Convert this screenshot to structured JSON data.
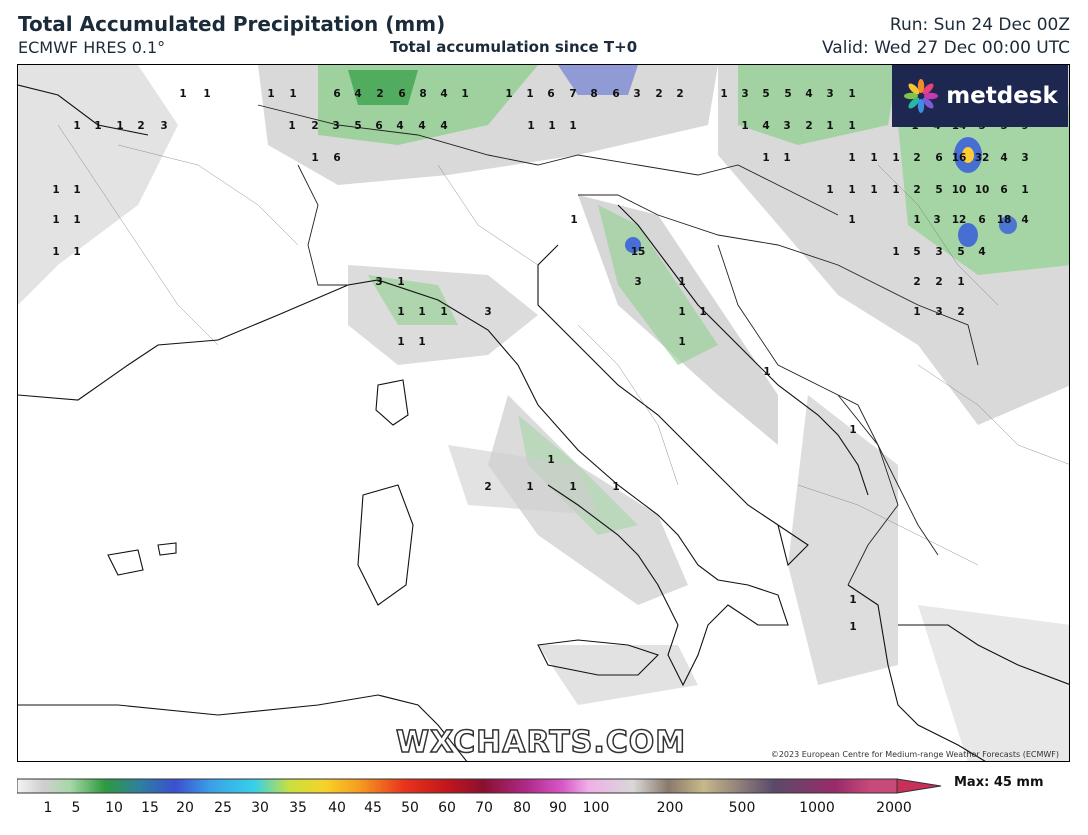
{
  "header": {
    "title": "Total Accumulated Precipitation (mm)",
    "subtitle": "ECMWF HRES 0.1°",
    "center_subtitle": "Total accumulation since T+0",
    "run": "Run: Sun 24 Dec 00Z",
    "valid": "Valid: Wed 27 Dec 00:00 UTC"
  },
  "logo": {
    "text": "metdesk",
    "icon": "pinwheel-logo-icon"
  },
  "watermark": "WXCHARTS.COM",
  "copyright": "©2023 European Centre for Medium-range Weather Forecasts (ECMWF)",
  "colorbar": {
    "max_label": "Max: 45 mm",
    "ticks": [
      "1",
      "5",
      "10",
      "15",
      "20",
      "25",
      "30",
      "35",
      "40",
      "45",
      "50",
      "60",
      "70",
      "80",
      "90",
      "100",
      "200",
      "500",
      "1000",
      "2000"
    ]
  },
  "map_labels": [
    "1",
    "1",
    "1",
    "1",
    "6",
    "4",
    "2",
    "6",
    "8",
    "4",
    "1",
    "1",
    "1",
    "6",
    "7",
    "8",
    "6",
    "3",
    "2",
    "2",
    "1",
    "3",
    "5",
    "5",
    "4",
    "3",
    "1",
    "1",
    "1",
    "1",
    "2",
    "3",
    "1",
    "2",
    "3",
    "5",
    "6",
    "4",
    "4",
    "4",
    "1",
    "1",
    "1",
    "1",
    "4",
    "3",
    "2",
    "1",
    "1",
    "1",
    "4",
    "14",
    "5",
    "5",
    "9",
    "1",
    "6",
    "1",
    "1",
    "1",
    "1",
    "1",
    "2",
    "6",
    "16",
    "32",
    "4",
    "3",
    "1",
    "1",
    "1",
    "1",
    "1",
    "1",
    "2",
    "5",
    "10",
    "10",
    "6",
    "1",
    "1",
    "1",
    "1",
    "1",
    "1",
    "3",
    "12",
    "6",
    "18",
    "4",
    "1",
    "15",
    "1",
    "5",
    "3",
    "5",
    "4",
    "3",
    "1",
    "3",
    "1",
    "2",
    "2",
    "1",
    "1",
    "1",
    "1",
    "3",
    "1",
    "1",
    "1",
    "3",
    "2",
    "1",
    "1",
    "1",
    "1",
    "1",
    "1",
    "2",
    "1",
    "1",
    "1",
    "1",
    "1",
    "1"
  ]
}
